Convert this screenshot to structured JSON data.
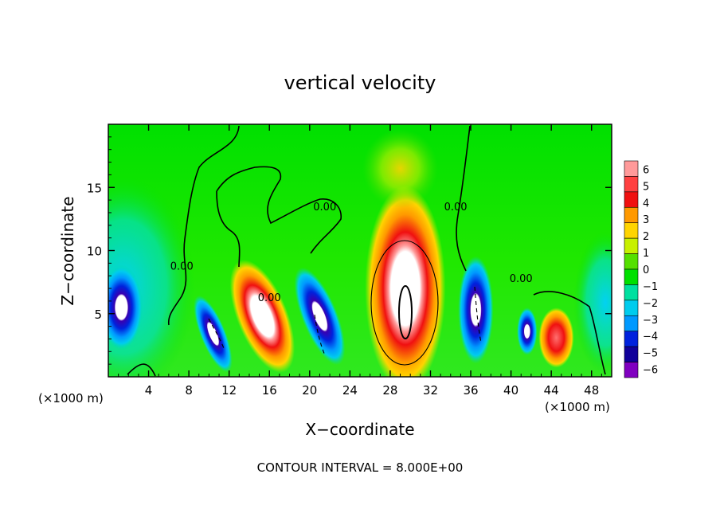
{
  "chart_data": {
    "type": "heatmap",
    "title": "vertical velocity",
    "xlabel": "X−coordinate",
    "ylabel": "Z−coordinate",
    "x_units": "(×1000 m)",
    "y_units": "(×1000 m)",
    "xlim": [
      0,
      50
    ],
    "ylim": [
      0,
      20
    ],
    "xticks": [
      4,
      8,
      12,
      16,
      20,
      24,
      28,
      32,
      36,
      40,
      44,
      48
    ],
    "yticks": [
      5,
      10,
      15
    ],
    "contour_labels": [
      {
        "text": "0.00",
        "x": 7.3,
        "z": 8.5
      },
      {
        "text": "0.00",
        "x": 16.0,
        "z": 6.0
      },
      {
        "text": "0.00",
        "x": 21.5,
        "z": 13.2
      },
      {
        "text": "0.00",
        "x": 34.5,
        "z": 13.2
      },
      {
        "text": "0.00",
        "x": 41.0,
        "z": 7.5
      }
    ],
    "footer": "CONTOUR INTERVAL = 8.000E+00",
    "colorbar": {
      "levels": [
        6,
        5,
        4,
        3,
        2,
        1,
        0,
        -1,
        -2,
        -3,
        -4,
        -5,
        -6
      ],
      "colors": [
        "#ff9a9a",
        "#ff4040",
        "#f01010",
        "#ff9900",
        "#ffd400",
        "#c8f000",
        "#55e000",
        "#00e000",
        "#00e0a0",
        "#00ccee",
        "#0099ff",
        "#0022dd",
        "#10009a",
        "#8000c0"
      ]
    },
    "cells": [
      {
        "x": 29.5,
        "z": 7.0,
        "rx": 3.2,
        "rz": 6.5,
        "value": 6.5
      },
      {
        "x": 15.3,
        "z": 4.8,
        "rx": 2.0,
        "rz": 3.8,
        "value": 6.2
      },
      {
        "x": 10.4,
        "z": 3.4,
        "rx": 1.0,
        "rz": 2.6,
        "value": -6.0
      },
      {
        "x": 21.0,
        "z": 4.8,
        "rx": 1.4,
        "rz": 3.3,
        "value": -6.0
      },
      {
        "x": 36.5,
        "z": 5.3,
        "rx": 1.4,
        "rz": 3.4,
        "value": -6.0
      },
      {
        "x": 1.3,
        "z": 5.5,
        "rx": 1.7,
        "rz": 2.7,
        "value": -5.0
      },
      {
        "x": 44.5,
        "z": 3.1,
        "rx": 1.4,
        "rz": 1.9,
        "value": 4.5
      },
      {
        "x": 41.6,
        "z": 3.6,
        "rx": 0.8,
        "rz": 1.5,
        "value": -5.5
      },
      {
        "x": 29.0,
        "z": 16.5,
        "rx": 3.0,
        "rz": 2.5,
        "value": 1.0
      }
    ]
  }
}
